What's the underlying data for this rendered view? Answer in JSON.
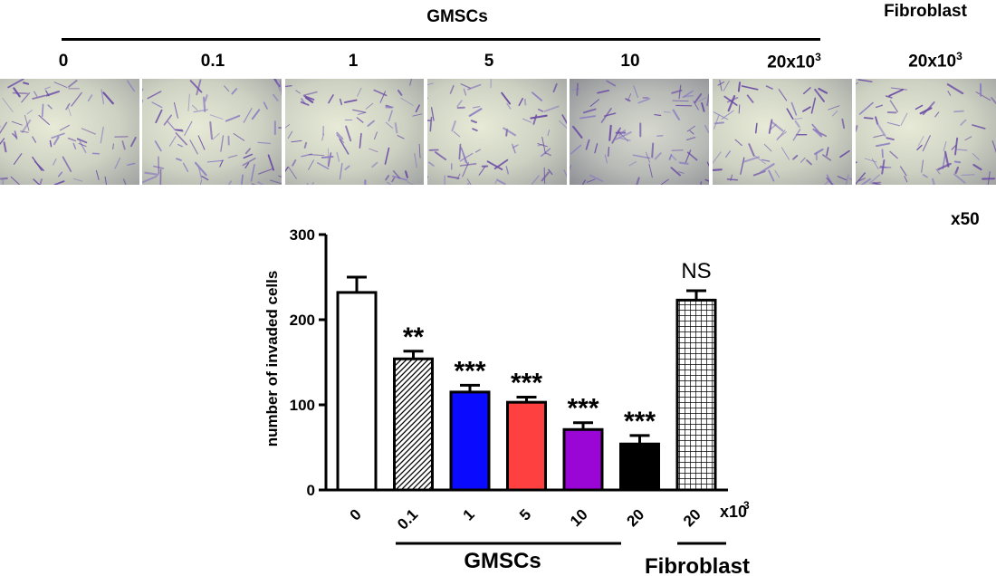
{
  "header": {
    "group_label": "GMSCs",
    "fibroblast_label": "Fibroblast",
    "panel_labels": [
      "0",
      "0.1",
      "1",
      "5",
      "10",
      "20x10",
      "20x10"
    ],
    "superscript": "3",
    "magnification": "x50"
  },
  "chart_data": {
    "type": "bar",
    "categories": [
      "0",
      "0.1",
      "1",
      "5",
      "10",
      "20",
      "20"
    ],
    "values": [
      232,
      154,
      115,
      103,
      71,
      54,
      223
    ],
    "errors": [
      18,
      9,
      8,
      6,
      8,
      10,
      11
    ],
    "annotations": [
      "",
      "**",
      "***",
      "***",
      "***",
      "***",
      "NS"
    ],
    "fills": [
      "#ffffff",
      "hatch-diagonal",
      "#0a0aff",
      "#ff4040",
      "#9a06d6",
      "#000000",
      "hatch-grid"
    ],
    "ylabel": "number of invaded cells",
    "yticks": [
      0,
      100,
      200,
      300
    ],
    "ylim": [
      0,
      300
    ],
    "x_unit": "x10",
    "x_unit_sup": "3",
    "group_labels": {
      "gmsc": "GMSCs",
      "fibroblast": "Fibroblast"
    }
  }
}
